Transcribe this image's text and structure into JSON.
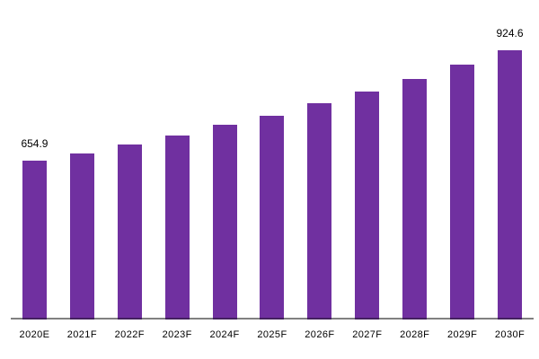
{
  "chart_data": {
    "type": "bar",
    "title": "",
    "xlabel": "",
    "ylabel": "",
    "legend_position": "none",
    "gridlines": false,
    "value_axis_visible": false,
    "categories": [
      "2020E",
      "2021F",
      "2022F",
      "2023F",
      "2024F",
      "2025F",
      "2026F",
      "2027F",
      "2028F",
      "2029F",
      "2030F"
    ],
    "values": [
      654.9,
      672.5,
      694.5,
      715.4,
      742.9,
      765.0,
      794.7,
      824.4,
      855.2,
      889.4,
      924.6
    ],
    "data_labels": [
      {
        "index": 0,
        "text": "654.9"
      },
      {
        "index": 10,
        "text": "924.6"
      }
    ],
    "colors": {
      "bar": "#7030A0",
      "bar_base_edge": "#43205f",
      "axis_line": "#808080",
      "text": "#000000",
      "background": "#FFFFFF"
    }
  }
}
